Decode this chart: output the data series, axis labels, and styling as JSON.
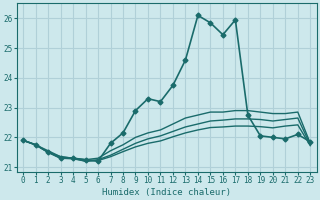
{
  "title": "",
  "xlabel": "Humidex (Indice chaleur)",
  "ylabel": "",
  "bg_color": "#cde8ec",
  "grid_color": "#b0d0d8",
  "line_color": "#1a6b6b",
  "xlim": [
    -0.5,
    23.5
  ],
  "ylim": [
    20.85,
    26.5
  ],
  "yticks": [
    21,
    22,
    23,
    24,
    25,
    26
  ],
  "xticks": [
    0,
    1,
    2,
    3,
    4,
    5,
    6,
    7,
    8,
    9,
    10,
    11,
    12,
    13,
    14,
    15,
    16,
    17,
    18,
    19,
    20,
    21,
    22,
    23
  ],
  "series": [
    {
      "x": [
        0,
        1,
        2,
        3,
        4,
        5,
        6,
        7,
        8,
        9,
        10,
        11,
        12,
        13,
        14,
        15,
        16,
        17,
        18,
        19,
        20,
        21,
        22,
        23
      ],
      "y": [
        21.9,
        21.75,
        21.5,
        21.3,
        21.3,
        21.25,
        21.2,
        21.8,
        22.15,
        22.9,
        23.3,
        23.2,
        23.75,
        24.6,
        26.1,
        25.85,
        25.45,
        25.95,
        22.75,
        22.05,
        22.0,
        21.95,
        22.1,
        21.85
      ],
      "marker": "D",
      "markersize": 2.5,
      "linewidth": 1.2
    },
    {
      "x": [
        0,
        1,
        2,
        3,
        4,
        5,
        6,
        7,
        8,
        9,
        10,
        11,
        12,
        13,
        14,
        15,
        16,
        17,
        18,
        19,
        20,
        21,
        22,
        23
      ],
      "y": [
        21.9,
        21.75,
        21.55,
        21.35,
        21.3,
        21.25,
        21.3,
        21.55,
        21.75,
        22.0,
        22.15,
        22.25,
        22.45,
        22.65,
        22.75,
        22.85,
        22.85,
        22.9,
        22.9,
        22.85,
        22.8,
        22.8,
        22.85,
        21.8
      ],
      "marker": null,
      "markersize": 0,
      "linewidth": 1.0
    },
    {
      "x": [
        0,
        1,
        2,
        3,
        4,
        5,
        6,
        7,
        8,
        9,
        10,
        11,
        12,
        13,
        14,
        15,
        16,
        17,
        18,
        19,
        20,
        21,
        22,
        23
      ],
      "y": [
        21.9,
        21.75,
        21.5,
        21.35,
        21.3,
        21.2,
        21.25,
        21.4,
        21.6,
        21.8,
        21.95,
        22.05,
        22.2,
        22.35,
        22.45,
        22.55,
        22.58,
        22.62,
        22.62,
        22.6,
        22.55,
        22.6,
        22.65,
        21.75
      ],
      "marker": null,
      "markersize": 0,
      "linewidth": 1.0
    },
    {
      "x": [
        0,
        1,
        2,
        3,
        4,
        5,
        6,
        7,
        8,
        9,
        10,
        11,
        12,
        13,
        14,
        15,
        16,
        17,
        18,
        19,
        20,
        21,
        22,
        23
      ],
      "y": [
        21.9,
        21.75,
        21.5,
        21.3,
        21.28,
        21.2,
        21.22,
        21.35,
        21.52,
        21.68,
        21.8,
        21.88,
        22.02,
        22.15,
        22.25,
        22.33,
        22.35,
        22.38,
        22.38,
        22.36,
        22.32,
        22.38,
        22.42,
        21.72
      ],
      "marker": null,
      "markersize": 0,
      "linewidth": 1.0
    }
  ]
}
